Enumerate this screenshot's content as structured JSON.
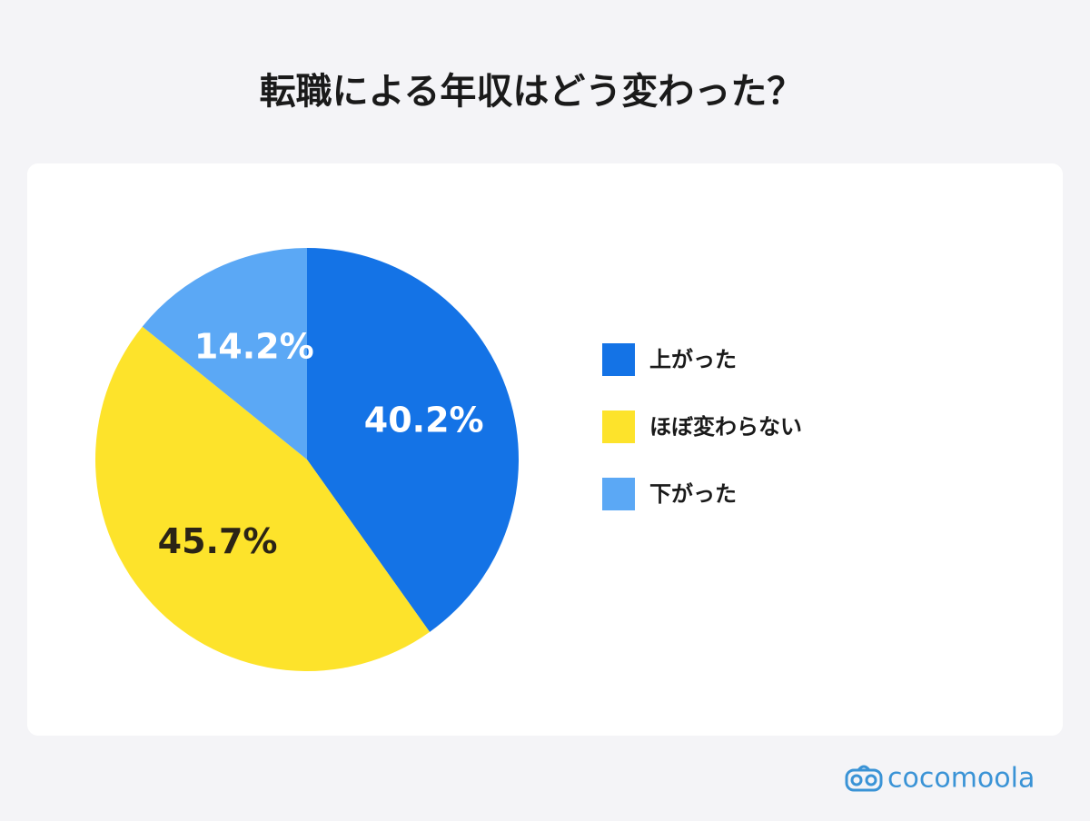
{
  "chart_data": {
    "type": "pie",
    "title": "転職による年収はどう変わった？",
    "categories": [
      "上がった",
      "ほぼ変わらない",
      "下がった"
    ],
    "values": [
      40.2,
      45.7,
      14.2
    ],
    "value_labels": [
      "40.2%",
      "45.7%",
      "14.2%"
    ],
    "colors": [
      "#1473e6",
      "#fde32b",
      "#5ba8f5"
    ],
    "label_colors": [
      "#ffffff",
      "#2b2416",
      "#ffffff"
    ],
    "legend": "right"
  },
  "brand": "cocomoola"
}
